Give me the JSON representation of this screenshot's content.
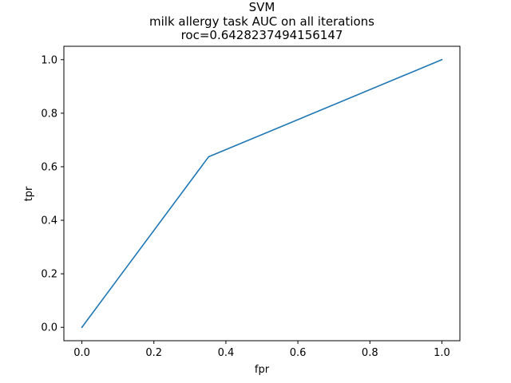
{
  "chart_data": {
    "type": "line",
    "title_lines": [
      "SVM",
      "milk allergy task AUC on all iterations",
      "roc=0.6428237494156147"
    ],
    "xlabel": "fpr",
    "ylabel": "tpr",
    "xlim": [
      -0.05,
      1.05
    ],
    "ylim": [
      -0.05,
      1.05
    ],
    "xticks": [
      0.0,
      0.2,
      0.4,
      0.6,
      0.8,
      1.0
    ],
    "xtick_labels": [
      "0.0",
      "0.2",
      "0.4",
      "0.6",
      "0.8",
      "1.0"
    ],
    "yticks": [
      0.0,
      0.2,
      0.4,
      0.6,
      0.8,
      1.0
    ],
    "ytick_labels": [
      "0.0",
      "0.2",
      "0.4",
      "0.6",
      "0.8",
      "1.0"
    ],
    "grid": false,
    "series": [
      {
        "x": [
          0.0,
          0.352,
          1.0
        ],
        "y": [
          0.0,
          0.637,
          1.0
        ],
        "color": "#1f77b4"
      }
    ]
  }
}
